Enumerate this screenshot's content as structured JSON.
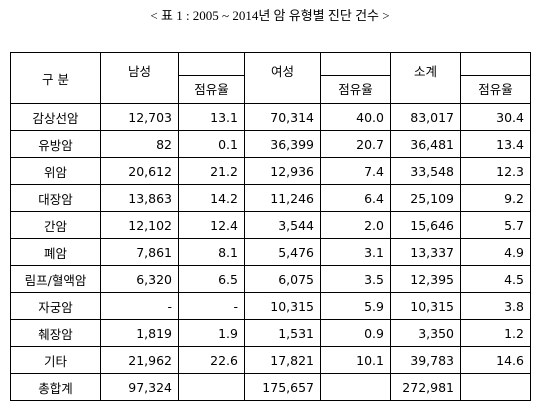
{
  "title": "< 표 1 : 2005 ~ 2014년 암 유형별 진단 건수 >",
  "table": {
    "header": [
      "구 분",
      "남성",
      "점유율",
      "여성",
      "점유율",
      "소계",
      "점유율"
    ],
    "rows": [
      [
        "감상선암",
        "12,703",
        "13.1",
        "70,314",
        "40.0",
        "83,017",
        "30.4"
      ],
      [
        "유방암",
        "82",
        "0.1",
        "36,399",
        "20.7",
        "36,481",
        "13.4"
      ],
      [
        "위암",
        "20,612",
        "21.2",
        "12,936",
        "7.4",
        "33,548",
        "12.3"
      ],
      [
        "대장암",
        "13,863",
        "14.2",
        "11,246",
        "6.4",
        "25,109",
        "9.2"
      ],
      [
        "간암",
        "12,102",
        "12.4",
        "3,544",
        "2.0",
        "15,646",
        "5.7"
      ],
      [
        "폐암",
        "7,861",
        "8.1",
        "5,476",
        "3.1",
        "13,337",
        "4.9"
      ],
      [
        "림프/혈액암",
        "6,320",
        "6.5",
        "6,075",
        "3.5",
        "12,395",
        "4.5"
      ],
      [
        "자궁암",
        "-",
        "-",
        "10,315",
        "5.9",
        "10,315",
        "3.8"
      ],
      [
        "췌장암",
        "1,819",
        "1.9",
        "1,531",
        "0.9",
        "3,350",
        "1.2"
      ],
      [
        "기타",
        "21,962",
        "22.6",
        "17,821",
        "10.1",
        "39,783",
        "14.6"
      ]
    ],
    "total_row": {
      "label": "총합계",
      "male": "97,324",
      "female": "175,657",
      "total": "272,981"
    }
  }
}
